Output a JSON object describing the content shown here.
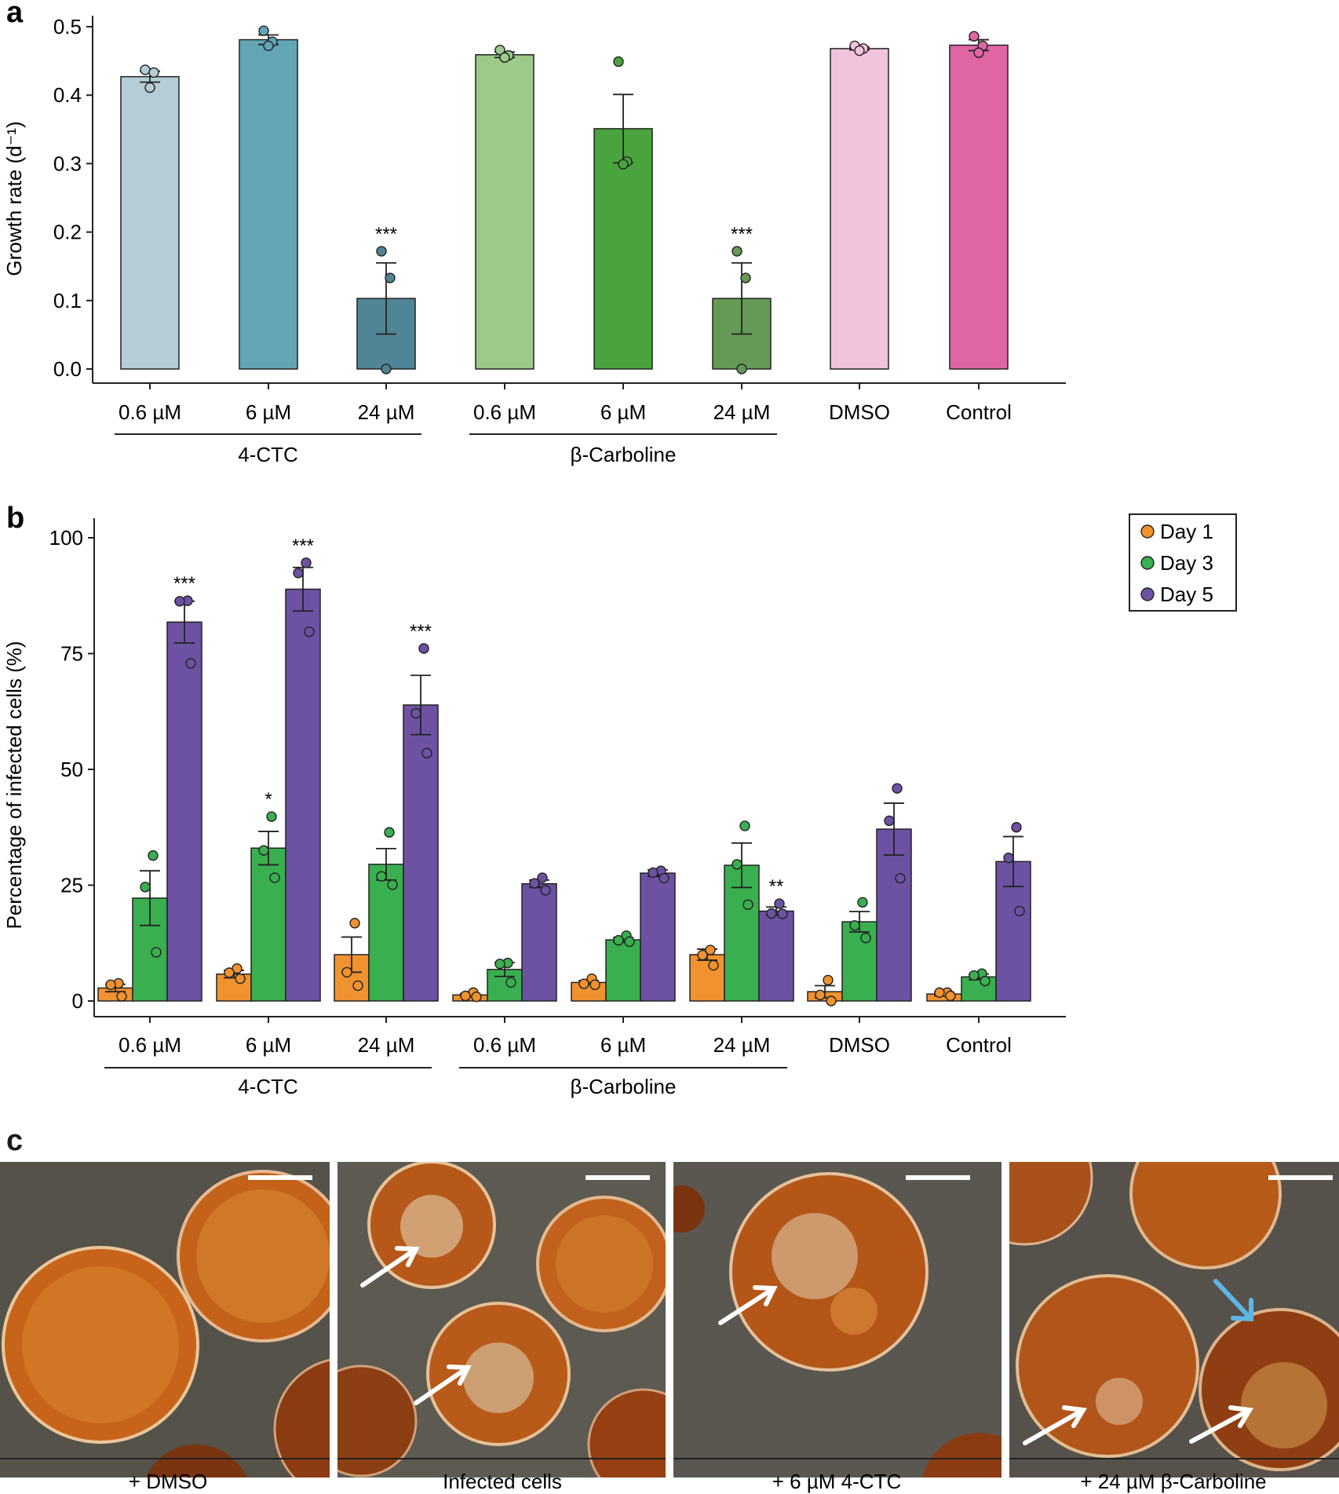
{
  "chart_data": [
    {
      "panel": "a",
      "type": "bar",
      "ylabel": "Growth rate (d⁻¹)",
      "ylim": [
        0,
        0.5
      ],
      "yticks": [
        "0.0",
        "0.1",
        "0.2",
        "0.3",
        "0.4",
        "0.5"
      ],
      "ytick_values": [
        0,
        0.1,
        0.2,
        0.3,
        0.4,
        0.5
      ],
      "categories": [
        "0.6 µM",
        "6 µM",
        "24 µM",
        "0.6 µM",
        "6 µM",
        "24 µM",
        "DMSO",
        "Control"
      ],
      "groups": [
        {
          "label": "4-CTC",
          "from": 0,
          "to": 2
        },
        {
          "label": "β-Carboline",
          "from": 3,
          "to": 5
        }
      ],
      "values": [
        0.427,
        0.481,
        0.103,
        0.459,
        0.351,
        0.103,
        0.468,
        0.473
      ],
      "errors": [
        0.008,
        0.007,
        0.052,
        0.004,
        0.05,
        0.052,
        0.002,
        0.008
      ],
      "points": [
        [
          0.437,
          0.433,
          0.411
        ],
        [
          0.494,
          0.478,
          0.472
        ],
        [
          0.172,
          0.133,
          0.0
        ],
        [
          0.466,
          0.458,
          0.455
        ],
        [
          0.449,
          0.303,
          0.299
        ],
        [
          0.172,
          0.133,
          0.0
        ],
        [
          0.472,
          0.468,
          0.465
        ],
        [
          0.486,
          0.472,
          0.462
        ]
      ],
      "colors": [
        "#b4cdd6",
        "#62a6b6",
        "#4f8595",
        "#9dc989",
        "#4aa43e",
        "#649a55",
        "#f2c3dc",
        "#df66a3"
      ],
      "significance": [
        "",
        "",
        "***",
        "",
        "",
        "***",
        "",
        ""
      ]
    },
    {
      "panel": "b",
      "type": "bar",
      "ylabel": "Percentage of infected cells (%)",
      "ylim": [
        0,
        100
      ],
      "yticks": [
        "0",
        "25",
        "50",
        "75",
        "100"
      ],
      "ytick_values": [
        0,
        25,
        50,
        75,
        100
      ],
      "categories": [
        "0.6 µM",
        "6 µM",
        "24 µM",
        "0.6 µM",
        "6 µM",
        "24 µM",
        "DMSO",
        "Control"
      ],
      "groups": [
        {
          "label": "4-CTC",
          "from": 0,
          "to": 2
        },
        {
          "label": "β-Carboline",
          "from": 3,
          "to": 5
        }
      ],
      "legend_position": "top-right",
      "series": [
        {
          "name": "Day 1",
          "color": "#f0922f",
          "values": [
            2.8,
            5.8,
            10.0,
            1.3,
            4.0,
            10.0,
            2.0,
            1.5
          ],
          "errors": [
            0.8,
            0.8,
            3.8,
            0.3,
            0.4,
            1.2,
            1.3,
            0.4
          ],
          "points": [
            [
              3.8,
              3.5,
              1.0
            ],
            [
              7.0,
              6.1,
              4.8
            ],
            [
              16.8,
              6.2,
              3.3
            ],
            [
              1.8,
              1.1,
              0.9
            ],
            [
              4.8,
              3.7,
              3.5
            ],
            [
              11.0,
              9.9,
              7.7
            ],
            [
              4.5,
              1.3,
              0.0
            ],
            [
              1.8,
              1.8,
              1.1
            ]
          ],
          "significance": [
            "",
            "",
            "",
            "",
            "",
            "",
            "",
            ""
          ]
        },
        {
          "name": "Day 3",
          "color": "#3aaf50",
          "values": [
            22.2,
            33.0,
            29.5,
            6.8,
            13.2,
            29.3,
            17.1,
            5.2
          ],
          "errors": [
            5.9,
            3.6,
            3.4,
            1.5,
            0.5,
            4.8,
            2.2,
            0.6
          ],
          "points": [
            [
              31.4,
              24.6,
              10.5
            ],
            [
              39.8,
              32.5,
              26.6
            ],
            [
              36.4,
              26.9,
              25.1
            ],
            [
              8.2,
              8.0,
              4.0
            ],
            [
              14.1,
              13.1,
              12.8
            ],
            [
              37.8,
              29.5,
              20.8
            ],
            [
              21.3,
              16.3,
              13.6
            ],
            [
              5.9,
              5.5,
              4.3
            ]
          ],
          "significance": [
            "",
            "*",
            "",
            "",
            "",
            "",
            "",
            ""
          ]
        },
        {
          "name": "Day 5",
          "color": "#6d52a3",
          "values": [
            81.8,
            88.9,
            63.9,
            25.3,
            27.6,
            19.4,
            37.1,
            30.1
          ],
          "errors": [
            4.5,
            4.7,
            6.4,
            0.8,
            0.7,
            0.9,
            5.6,
            5.4
          ],
          "points": [
            [
              86.4,
              86.3,
              72.9
            ],
            [
              94.6,
              92.4,
              79.7
            ],
            [
              76.1,
              62.1,
              53.5
            ],
            [
              26.6,
              25.4,
              23.9
            ],
            [
              28.1,
              27.7,
              26.5
            ],
            [
              21.0,
              18.9,
              18.8
            ],
            [
              45.9,
              38.9,
              26.5
            ],
            [
              37.5,
              30.9,
              19.4
            ]
          ],
          "significance": [
            "***",
            "***",
            "***",
            "",
            "",
            "**",
            "",
            ""
          ]
        }
      ]
    }
  ],
  "panels": {
    "a": "a",
    "b": "b",
    "c": "c"
  },
  "micrographs": [
    {
      "caption": "+ DMSO"
    },
    {
      "caption": "Infected cells"
    },
    {
      "caption": "+ 6 µM 4-CTC"
    },
    {
      "caption": "+ 24 µM β-Carboline"
    }
  ],
  "arrow_colors": {
    "infection": "#ffffff",
    "lysis": "#5db7e6"
  }
}
